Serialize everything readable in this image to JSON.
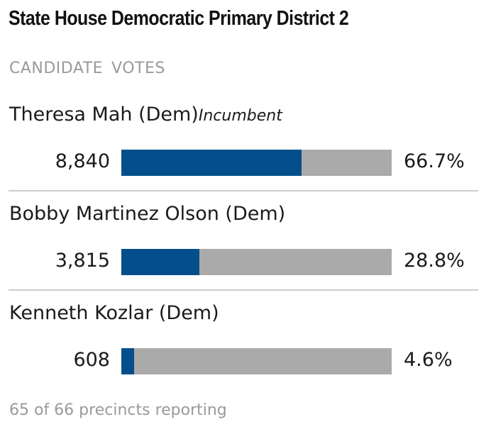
{
  "title": "State House Democratic Primary District 2",
  "columns": {
    "candidate": "CANDIDATE",
    "votes": "VOTES"
  },
  "footer": "65 of 66 precincts reporting",
  "colors": {
    "bar": "#044f8b",
    "track": "#aaaaaa",
    "divider": "#cccccc"
  },
  "chart_data": {
    "type": "bar",
    "orientation": "horizontal",
    "title": "State House Democratic Primary District 2",
    "categories": [
      "Theresa Mah (Dem)",
      "Bobby Martinez Olson (Dem)",
      "Kenneth Kozlar (Dem)"
    ],
    "values": [
      8840,
      3815,
      608
    ],
    "percent": [
      66.7,
      28.8,
      4.6
    ],
    "xlim": [
      0,
      100
    ]
  },
  "candidates": [
    {
      "name": "Theresa Mah (Dem)",
      "note": "Incumbent",
      "votes": "8,840",
      "pct_label": "66.7%",
      "pct": 66.7
    },
    {
      "name": "Bobby Martinez Olson (Dem)",
      "note": "",
      "votes": "3,815",
      "pct_label": "28.8%",
      "pct": 28.8
    },
    {
      "name": "Kenneth Kozlar (Dem)",
      "note": "",
      "votes": "608",
      "pct_label": "4.6%",
      "pct": 4.6
    }
  ]
}
